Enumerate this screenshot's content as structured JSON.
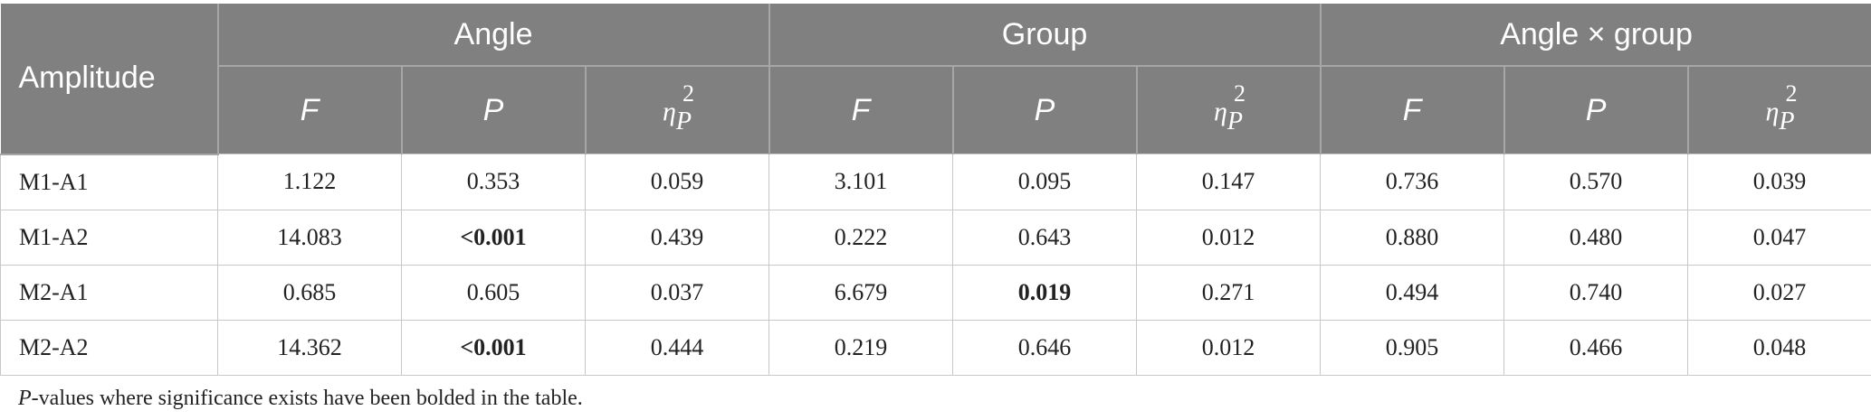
{
  "header": {
    "row_label": "Amplitude",
    "groups": [
      "Angle",
      "Group",
      "Angle × group"
    ],
    "stat_f": "F",
    "stat_p": "P",
    "eta_symbol": "η",
    "eta_sup": "2",
    "eta_sub": "P"
  },
  "rows": [
    {
      "label": "M1-A1",
      "cells": [
        {
          "v": "1.122",
          "bold": false
        },
        {
          "v": "0.353",
          "bold": false
        },
        {
          "v": "0.059",
          "bold": false
        },
        {
          "v": "3.101",
          "bold": false
        },
        {
          "v": "0.095",
          "bold": false
        },
        {
          "v": "0.147",
          "bold": false
        },
        {
          "v": "0.736",
          "bold": false
        },
        {
          "v": "0.570",
          "bold": false
        },
        {
          "v": "0.039",
          "bold": false
        }
      ]
    },
    {
      "label": "M1-A2",
      "cells": [
        {
          "v": "14.083",
          "bold": false
        },
        {
          "v": "<0.001",
          "bold": true
        },
        {
          "v": "0.439",
          "bold": false
        },
        {
          "v": "0.222",
          "bold": false
        },
        {
          "v": "0.643",
          "bold": false
        },
        {
          "v": "0.012",
          "bold": false
        },
        {
          "v": "0.880",
          "bold": false
        },
        {
          "v": "0.480",
          "bold": false
        },
        {
          "v": "0.047",
          "bold": false
        }
      ]
    },
    {
      "label": "M2-A1",
      "cells": [
        {
          "v": "0.685",
          "bold": false
        },
        {
          "v": "0.605",
          "bold": false
        },
        {
          "v": "0.037",
          "bold": false
        },
        {
          "v": "6.679",
          "bold": false
        },
        {
          "v": "0.019",
          "bold": true
        },
        {
          "v": "0.271",
          "bold": false
        },
        {
          "v": "0.494",
          "bold": false
        },
        {
          "v": "0.740",
          "bold": false
        },
        {
          "v": "0.027",
          "bold": false
        }
      ]
    },
    {
      "label": "M2-A2",
      "cells": [
        {
          "v": "14.362",
          "bold": false
        },
        {
          "v": "<0.001",
          "bold": true
        },
        {
          "v": "0.444",
          "bold": false
        },
        {
          "v": "0.219",
          "bold": false
        },
        {
          "v": "0.646",
          "bold": false
        },
        {
          "v": "0.012",
          "bold": false
        },
        {
          "v": "0.905",
          "bold": false
        },
        {
          "v": "0.466",
          "bold": false
        },
        {
          "v": "0.048",
          "bold": false
        }
      ]
    }
  ],
  "footnote": {
    "italic_part": "P",
    "rest": "-values where significance exists have been bolded in the table."
  }
}
